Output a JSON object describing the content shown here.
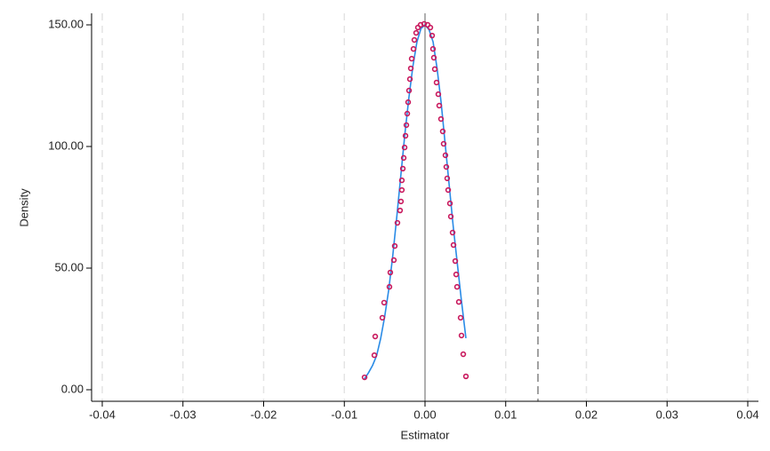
{
  "chart_data": {
    "type": "scatter",
    "x_label": "Estimator",
    "y_label": "Density",
    "xlim": [
      -0.04,
      0.04
    ],
    "ylim": [
      0,
      150
    ],
    "xticks": [
      -0.04,
      -0.03,
      -0.02,
      -0.01,
      {
        "value": 0,
        "label": "0.00"
      },
      0.01,
      0.02,
      0.03,
      0.04
    ],
    "yticks": [
      {
        "value": 0,
        "label": "0.00"
      },
      {
        "value": 50,
        "label": "50.00"
      },
      {
        "value": 100,
        "label": "100.00"
      },
      {
        "value": 150,
        "label": "150.00"
      }
    ],
    "grid": true,
    "vlines": [
      {
        "value": 0,
        "style": "solid",
        "color": "#b0b0b0"
      },
      {
        "value": 0.014,
        "style": "dashed",
        "color": "#a0a0a0"
      }
    ],
    "series": [
      {
        "type": "scatter",
        "color": "#c8175c",
        "x": [
          -0.00749,
          -0.00628,
          -0.00617,
          -0.00529,
          -0.00507,
          -0.00441,
          -0.0043,
          -0.00386,
          -0.00375,
          -0.00342,
          -0.00309,
          -0.00298,
          -0.00287,
          -0.00287,
          -0.00275,
          -0.00264,
          -0.00253,
          -0.00242,
          -0.00231,
          -0.0022,
          -0.00209,
          -0.00198,
          -0.00187,
          -0.00176,
          -0.00165,
          -0.00143,
          -0.00132,
          -0.0011,
          -0.00088,
          -0.00055,
          -0.00011,
          0.00033,
          0.00066,
          0.00088,
          0.00099,
          0.0011,
          0.00121,
          0.00143,
          0.00165,
          0.00176,
          0.00198,
          0.0022,
          0.00231,
          0.00253,
          0.00264,
          0.00275,
          0.00287,
          0.00309,
          0.0032,
          0.00342,
          0.00353,
          0.00375,
          0.00386,
          0.00397,
          0.00419,
          0.00441,
          0.00452,
          0.00474,
          0.00507
        ],
        "values": [
          5.1,
          14.2,
          21.9,
          29.6,
          35.8,
          42.3,
          48.2,
          53.3,
          59.1,
          68.6,
          73.7,
          77.4,
          82.1,
          86.1,
          90.9,
          95.3,
          99.6,
          104.4,
          108.8,
          113.5,
          118.2,
          123,
          127.7,
          132.1,
          136.1,
          140.1,
          143.8,
          146.7,
          148.9,
          150,
          150.4,
          150,
          148.9,
          145.6,
          140.1,
          136.5,
          131.8,
          126.3,
          121.5,
          116.8,
          111.3,
          106.2,
          101.1,
          96.4,
          91.6,
          86.9,
          82.1,
          76.6,
          71.2,
          64.6,
          59.5,
          52.9,
          47.4,
          42.3,
          36.1,
          29.6,
          22.3,
          14.6,
          5.5
        ]
      },
      {
        "type": "line",
        "color": "#2a8be6",
        "x": [
          -0.0075,
          -0.007,
          -0.0065,
          -0.006,
          -0.0055,
          -0.005,
          -0.0045,
          -0.004,
          -0.0035,
          -0.003,
          -0.0025,
          -0.002,
          -0.0015,
          -0.001,
          -0.0005,
          0,
          0.0005,
          0.001,
          0.0015,
          0.002,
          0.0025,
          0.003,
          0.0035,
          0.004,
          0.0045,
          0.00507
        ],
        "values": [
          4.5,
          7,
          10,
          14,
          21,
          30,
          41,
          55,
          71,
          88,
          105,
          120,
          133,
          143,
          148.5,
          150,
          148,
          143,
          132,
          118,
          101,
          84,
          67,
          52,
          37,
          21.2
        ]
      }
    ]
  }
}
